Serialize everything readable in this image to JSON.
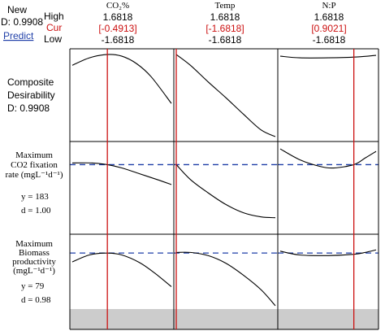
{
  "header": {
    "label_new": "New",
    "label_d": "D: 0.9908",
    "label_predict": "Predict",
    "label_high": "High",
    "label_cur": "Cur",
    "label_low": "Low"
  },
  "factors": [
    {
      "name": "CO₂%",
      "high": "1.6818",
      "cur": "[-0.4913]",
      "low": "-1.6818"
    },
    {
      "name": "Temp",
      "high": "1.6818",
      "cur": "[-1.6818]",
      "low": "-1.6818"
    },
    {
      "name": "N:P",
      "high": "1.6818",
      "cur": "[0.9021]",
      "low": "-1.6818"
    }
  ],
  "rows": [
    {
      "label_lines": [
        "Composite",
        "Desirability",
        "D: 0.9908"
      ]
    },
    {
      "label_lines": [
        "Maximum",
        "CO2 fixation",
        "rate (mgL⁻¹d⁻¹)",
        "y = 183",
        "d = 1.00"
      ]
    },
    {
      "label_lines": [
        "Maximum",
        "Biomass",
        "productivity",
        "(mgL⁻¹d⁻¹)",
        "y = 79",
        "d = 0.98"
      ]
    }
  ],
  "colors": {
    "current_line": "#cc1111",
    "target_line": "#1f3fa8",
    "curve": "#000000",
    "shade": "#cccccc"
  },
  "chart_data": {
    "type": "line",
    "x_range": [
      -1.6818,
      1.6818
    ],
    "current_settings": [
      -0.4913,
      -1.6818,
      0.9021
    ],
    "panels": [
      {
        "row": 0,
        "col": 0,
        "ylim": [
          0,
          1
        ],
        "x": [
          -1.6818,
          -1.1,
          -0.5,
          0,
          0.5,
          1.0,
          1.6818
        ],
        "y": [
          0.86,
          0.95,
          0.99,
          0.97,
          0.88,
          0.72,
          0.4
        ]
      },
      {
        "row": 0,
        "col": 1,
        "ylim": [
          0,
          1
        ],
        "x": [
          -1.6818,
          -1.2,
          -0.6,
          0,
          0.6,
          1.2,
          1.6818
        ],
        "y": [
          0.99,
          0.86,
          0.66,
          0.47,
          0.27,
          0.08,
          0.0
        ]
      },
      {
        "row": 0,
        "col": 2,
        "ylim": [
          0,
          1
        ],
        "x": [
          -1.6818,
          -1,
          0,
          1,
          1.6818
        ],
        "y": [
          0.97,
          0.95,
          0.95,
          0.96,
          0.98
        ]
      },
      {
        "row": 1,
        "col": 0,
        "ylim": [
          0,
          1
        ],
        "target": 0.78,
        "x": [
          -1.6818,
          -1,
          -0.4913,
          0,
          0.6,
          1.2,
          1.6818
        ],
        "y": [
          0.8,
          0.8,
          0.78,
          0.74,
          0.67,
          0.6,
          0.54
        ]
      },
      {
        "row": 1,
        "col": 1,
        "ylim": [
          0,
          1
        ],
        "target": 0.78,
        "x": [
          -1.6818,
          -1.2,
          -0.6,
          0,
          0.6,
          1.2,
          1.6818
        ],
        "y": [
          0.78,
          0.6,
          0.44,
          0.3,
          0.2,
          0.15,
          0.14
        ]
      },
      {
        "row": 1,
        "col": 2,
        "ylim": [
          0,
          1
        ],
        "target": 0.78,
        "x": [
          -1.6818,
          -1,
          -0.3,
          0.2,
          0.9,
          1.3,
          1.6818
        ],
        "y": [
          0.97,
          0.84,
          0.76,
          0.74,
          0.78,
          0.86,
          0.94
        ]
      },
      {
        "row": 2,
        "col": 0,
        "ylim": [
          0,
          1
        ],
        "target": 0.78,
        "x": [
          -1.6818,
          -1.1,
          -0.4913,
          0,
          0.6,
          1.1,
          1.6818
        ],
        "y": [
          0.64,
          0.75,
          0.78,
          0.75,
          0.63,
          0.47,
          0.25
        ]
      },
      {
        "row": 2,
        "col": 1,
        "ylim": [
          0,
          1
        ],
        "target": 0.78,
        "x": [
          -1.6818,
          -1.2,
          -0.6,
          0,
          0.6,
          1.2,
          1.6818
        ],
        "y": [
          0.79,
          0.79,
          0.74,
          0.62,
          0.43,
          0.2,
          -0.05
        ]
      },
      {
        "row": 2,
        "col": 2,
        "ylim": [
          0,
          1
        ],
        "target": 0.78,
        "x": [
          -1.6818,
          -1,
          0,
          0.9021,
          1.3,
          1.6818
        ],
        "y": [
          0.81,
          0.75,
          0.74,
          0.76,
          0.79,
          0.83
        ]
      }
    ]
  }
}
